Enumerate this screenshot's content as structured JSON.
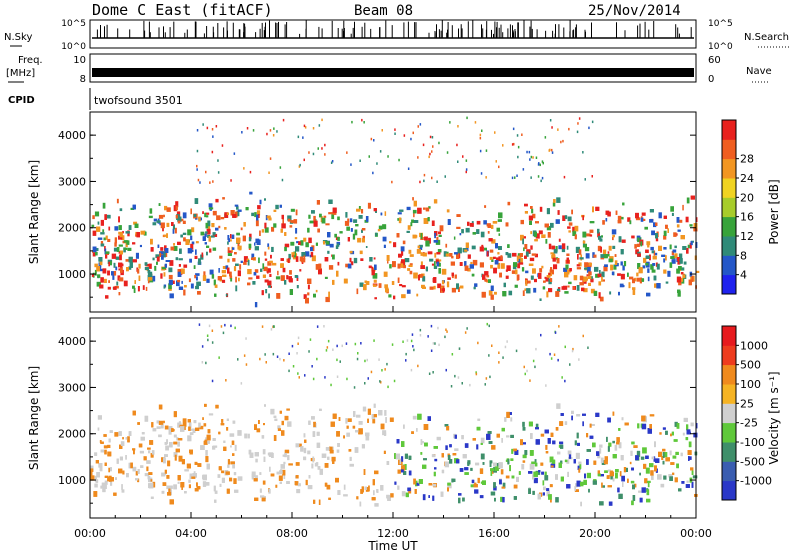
{
  "header": {
    "title": "Dome C East (fitACF)",
    "beam": "Beam 08",
    "date": "25/Nov/2014"
  },
  "top_panels": {
    "nsky_label": "N.Sky",
    "nsky_ticks": [
      "10^5",
      "10^0"
    ],
    "nsearch_label": "N.Search",
    "nsearch_ticks": [
      "10^5",
      "10^0"
    ],
    "freq_label": "Freq.",
    "freq_unit": "[MHz]",
    "freq_ticks": [
      "10",
      "8"
    ],
    "nave_label": "Nave",
    "nave_ticks": [
      "60",
      "0"
    ],
    "cpid_label": "CPID",
    "cpid_value": "twofsound 3501"
  },
  "chart_data": [
    {
      "type": "heatmap",
      "name": "power-panel",
      "ylabel": "Slant Range [km]",
      "y_ticks": [
        "1000",
        "2000",
        "3000",
        "4000"
      ],
      "ylim": [
        180,
        4500
      ],
      "xlim_hours": [
        0,
        24
      ],
      "colorbar": {
        "label": "Power [dB]",
        "ticks": [
          "4",
          "8",
          "12",
          "16",
          "20",
          "24",
          "28"
        ],
        "colors": [
          "#1f22ee",
          "#2457c8",
          "#2f8a78",
          "#37a33a",
          "#a7cc2a",
          "#f0d321",
          "#f29622",
          "#ef5e20",
          "#e8211e"
        ]
      }
    },
    {
      "type": "heatmap",
      "name": "velocity-panel",
      "ylabel": "Slant Range [km]",
      "y_ticks": [
        "1000",
        "2000",
        "3000",
        "4000"
      ],
      "ylim": [
        180,
        4500
      ],
      "xlim_hours": [
        0,
        24
      ],
      "colorbar": {
        "label": "Velocity [m s⁻¹]",
        "ticks": [
          "1000",
          "500",
          "100",
          "25",
          "-25",
          "-100",
          "-500",
          "-1000"
        ],
        "colors": [
          "#2a38c8",
          "#3a5db0",
          "#3f8f6a",
          "#5fc83a",
          "#cfcfcf",
          "#f5b323",
          "#ef8a1d",
          "#ee3c1e",
          "#e71a1e"
        ]
      }
    }
  ],
  "x_axis": {
    "ticks": [
      "00:00",
      "04:00",
      "08:00",
      "12:00",
      "16:00",
      "20:00",
      "00:00"
    ],
    "label": "Time UT"
  },
  "colors": {
    "power_dominant": [
      "#2f8a78",
      "#37a33a",
      "#f29622",
      "#ef5e20",
      "#e8211e",
      "#2457c8"
    ],
    "velocity_dominant": [
      "#cfcfcf",
      "#ef8a1d",
      "#3f8f6a",
      "#2a38c8",
      "#5fc83a"
    ]
  }
}
